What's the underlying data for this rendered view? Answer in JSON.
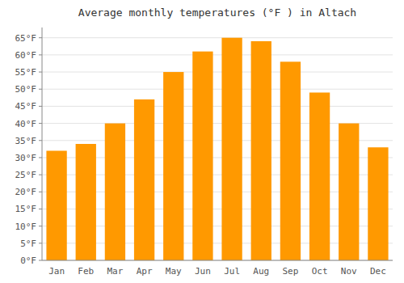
{
  "chart_data": {
    "type": "bar",
    "title": "Average monthly temperatures (°F ) in Altach",
    "categories": [
      "Jan",
      "Feb",
      "Mar",
      "Apr",
      "May",
      "Jun",
      "Jul",
      "Aug",
      "Sep",
      "Oct",
      "Nov",
      "Dec"
    ],
    "values": [
      32,
      34,
      40,
      47,
      55,
      61,
      65,
      64,
      58,
      49,
      40,
      33
    ],
    "color": "#FF9900",
    "ylim": [
      0,
      68
    ],
    "yticks": [
      {
        "value": 0,
        "label": "0°F"
      },
      {
        "value": 5,
        "label": "5°F"
      },
      {
        "value": 10,
        "label": "10°F"
      },
      {
        "value": 15,
        "label": "15°F"
      },
      {
        "value": 20,
        "label": "20°F"
      },
      {
        "value": 25,
        "label": "25°F"
      },
      {
        "value": 30,
        "label": "30°F"
      },
      {
        "value": 35,
        "label": "35°F"
      },
      {
        "value": 40,
        "label": "40°F"
      },
      {
        "value": 45,
        "label": "45°F"
      },
      {
        "value": 50,
        "label": "50°F"
      },
      {
        "value": 55,
        "label": "55°F"
      },
      {
        "value": 60,
        "label": "60°F"
      },
      {
        "value": 65,
        "label": "65°F"
      }
    ],
    "grid": true
  }
}
